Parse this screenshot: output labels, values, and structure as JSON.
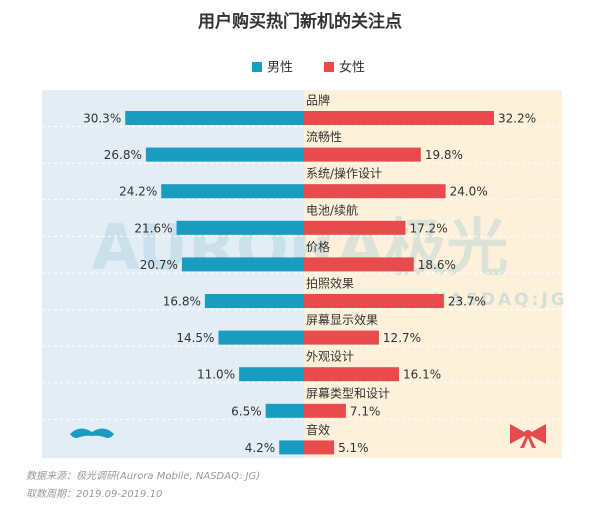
{
  "chart_data": {
    "type": "bar",
    "title": "用户购买热门新机的关注点",
    "categories": [
      "品牌",
      "流畅性",
      "系统/操作设计",
      "电池/续航",
      "价格",
      "拍照效果",
      "屏幕显示效果",
      "外观设计",
      "屏幕类型和设计",
      "音效"
    ],
    "series": [
      {
        "name": "男性",
        "color": "#1a9bc0",
        "values": [
          30.3,
          26.8,
          24.2,
          21.6,
          20.7,
          16.8,
          14.5,
          11.0,
          6.5,
          4.2
        ],
        "value_labels": [
          "30.3%",
          "26.8%",
          "24.2%",
          "21.6%",
          "20.7%",
          "16.8%",
          "14.5%",
          "11.0%",
          "6.5%",
          "4.2%"
        ]
      },
      {
        "name": "女性",
        "color": "#e84b4b",
        "values": [
          32.2,
          19.8,
          24.0,
          17.2,
          18.6,
          23.7,
          12.7,
          16.1,
          7.1,
          5.1
        ],
        "value_labels": [
          "32.2%",
          "19.8%",
          "24.0%",
          "17.2%",
          "18.6%",
          "23.7%",
          "12.7%",
          "16.1%",
          "7.1%",
          "5.1%"
        ]
      }
    ],
    "watermark": "AURORA极光",
    "watermark_sub": "NASDAQ:JG",
    "source": "数据来源：极光调研(Aurora Mobile, NASDAQ: JG)",
    "period": "取数周期：2019.09-2019.10"
  }
}
